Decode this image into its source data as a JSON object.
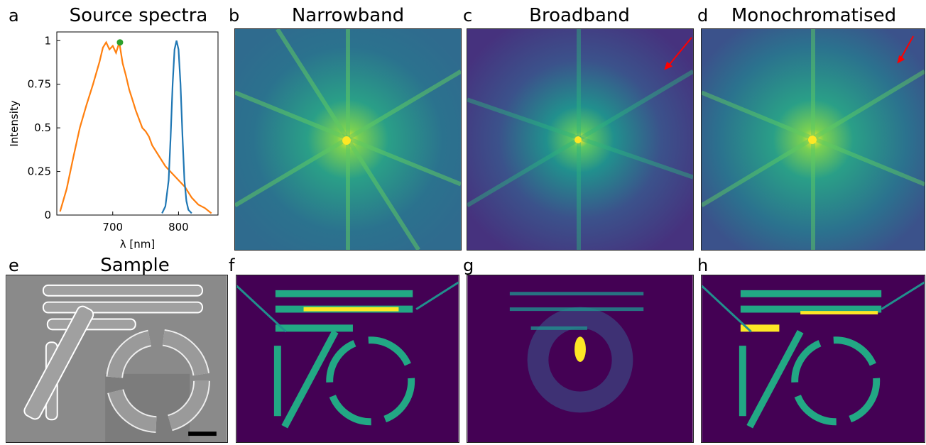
{
  "panel_letters": {
    "a": "a",
    "b": "b",
    "c": "c",
    "d": "d",
    "e": "e",
    "f": "f",
    "g": "g",
    "h": "h"
  },
  "titles": {
    "a": "Source spectra",
    "b": "Narrowband",
    "c": "Broadband",
    "d": "Monochromatised",
    "e": "Sample"
  },
  "chart_data": {
    "type": "line",
    "title": "Source spectra",
    "xlabel": "λ [nm]",
    "ylabel": "Intensity",
    "xlim": [
      615,
      860
    ],
    "ylim": [
      0,
      1.05
    ],
    "xticks": [
      700,
      800
    ],
    "xtick_labels": [
      "700",
      "800"
    ],
    "yticks": [
      0,
      0.25,
      0.5,
      0.75,
      1
    ],
    "ytick_labels": [
      "0",
      "0.25",
      "0.5",
      "0.75",
      "1"
    ],
    "grid": false,
    "series": [
      {
        "color": "#ff7f0e",
        "x": [
          620,
          630,
          640,
          650,
          660,
          670,
          680,
          685,
          690,
          695,
          700,
          705,
          710,
          715,
          720,
          725,
          730,
          735,
          740,
          745,
          750,
          755,
          760,
          770,
          780,
          790,
          800,
          810,
          820,
          830,
          840,
          850
        ],
        "y": [
          0.02,
          0.15,
          0.33,
          0.5,
          0.63,
          0.75,
          0.88,
          0.96,
          0.99,
          0.95,
          0.97,
          0.93,
          0.99,
          0.87,
          0.8,
          0.72,
          0.66,
          0.6,
          0.55,
          0.5,
          0.48,
          0.45,
          0.4,
          0.34,
          0.28,
          0.24,
          0.2,
          0.16,
          0.1,
          0.06,
          0.04,
          0.01
        ]
      },
      {
        "color": "#1f77b4",
        "x": [
          775,
          780,
          785,
          788,
          791,
          794,
          797,
          800,
          803,
          806,
          809,
          812,
          815,
          820
        ],
        "y": [
          0.01,
          0.05,
          0.2,
          0.45,
          0.75,
          0.95,
          1.0,
          0.95,
          0.75,
          0.45,
          0.2,
          0.08,
          0.03,
          0.01
        ]
      }
    ],
    "marker": {
      "x": 711,
      "y": 0.99,
      "color": "#2ca02c"
    }
  },
  "colors": {
    "viridis_dark": "#440154",
    "viridis_bg": "#3b3f8a",
    "viridis_mid": "#21908d",
    "viridis_bright": "#5ec962",
    "viridis_peak": "#fde725",
    "arrow": "#ff0000"
  },
  "scale_bar_icon": "scale-bar"
}
